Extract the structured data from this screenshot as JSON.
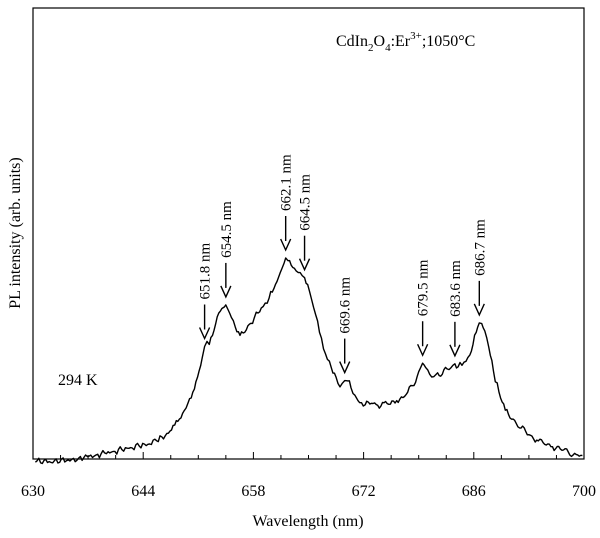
{
  "chart_data": {
    "type": "line",
    "xlabel": "Wavelength (nm)",
    "ylabel": "PL intensity (arb. units)",
    "xlim": [
      630,
      700
    ],
    "ylim": [
      0,
      1
    ],
    "x_ticks": [
      630,
      644,
      658,
      672,
      686,
      700
    ],
    "y_ticks_shown": false,
    "grid": false,
    "annotations": {
      "temperature": "294 K",
      "sample": {
        "base": "CdIn",
        "sub1": "2",
        "mid": "O",
        "sub2": "4",
        "mid2": ":Er",
        "sup": "3+",
        "tail": ";1050°C"
      }
    },
    "peaks": [
      {
        "label": "651.8 nm",
        "x": 651.8,
        "y": 0.393
      },
      {
        "label": "654.5 nm",
        "x": 654.5,
        "y": 0.532
      },
      {
        "label": "662.1 nm",
        "x": 662.1,
        "y": 0.689
      },
      {
        "label": "664.5 nm",
        "x": 664.5,
        "y": 0.623
      },
      {
        "label": "669.6 nm",
        "x": 669.6,
        "y": 0.279
      },
      {
        "label": "679.5 nm",
        "x": 679.5,
        "y": 0.337
      },
      {
        "label": "683.6 nm",
        "x": 683.6,
        "y": 0.335
      },
      {
        "label": "686.7 nm",
        "x": 686.7,
        "y": 0.472
      }
    ],
    "series": [
      {
        "x": [
          630.3,
          631.4,
          632.5,
          633.6,
          634.7,
          635.8,
          636.9,
          638.0,
          639.1,
          640.2,
          641.3,
          642.4,
          643.5,
          644.6,
          645.7,
          646.8,
          647.4,
          648.0,
          648.6,
          649.2,
          649.7,
          650.3,
          650.9,
          651.5,
          651.8,
          652.1,
          652.4,
          652.8,
          653.2,
          653.6,
          654.0,
          654.3,
          654.5,
          654.8,
          655.2,
          655.7,
          656.3,
          656.9,
          657.5,
          658.1,
          658.6,
          659.0,
          659.5,
          660.0,
          660.4,
          660.8,
          661.2,
          661.6,
          661.9,
          662.1,
          662.4,
          662.8,
          663.2,
          663.7,
          664.2,
          664.5,
          664.9,
          665.4,
          665.9,
          666.4,
          666.9,
          667.4,
          667.9,
          668.5,
          669.0,
          669.3,
          669.6,
          670.0,
          670.4,
          670.9,
          671.5,
          672.2,
          673.0,
          673.8,
          674.6,
          675.4,
          676.2,
          677.0,
          677.6,
          678.2,
          678.8,
          679.2,
          679.5,
          679.9,
          680.4,
          680.9,
          681.4,
          682.0,
          682.6,
          683.1,
          683.6,
          684.0,
          684.5,
          685.0,
          685.5,
          685.9,
          686.3,
          686.7,
          687.0,
          687.4,
          687.9,
          688.5,
          689.2,
          690.0,
          691.0,
          692.0,
          693.0,
          694.0,
          695.0,
          696.0,
          697.0,
          698.0,
          699.0,
          699.8
        ],
        "y": [
          0.006,
          0.012,
          0.004,
          0.016,
          0.01,
          0.02,
          0.025,
          0.03,
          0.037,
          0.042,
          0.048,
          0.055,
          0.06,
          0.066,
          0.078,
          0.094,
          0.11,
          0.13,
          0.15,
          0.178,
          0.205,
          0.24,
          0.29,
          0.355,
          0.393,
          0.41,
          0.4,
          0.43,
          0.468,
          0.505,
          0.52,
          0.525,
          0.532,
          0.515,
          0.49,
          0.458,
          0.43,
          0.44,
          0.468,
          0.488,
          0.505,
          0.522,
          0.538,
          0.555,
          0.575,
          0.6,
          0.625,
          0.652,
          0.672,
          0.689,
          0.68,
          0.665,
          0.655,
          0.64,
          0.63,
          0.623,
          0.6,
          0.55,
          0.5,
          0.44,
          0.385,
          0.35,
          0.322,
          0.29,
          0.258,
          0.27,
          0.279,
          0.278,
          0.255,
          0.23,
          0.205,
          0.198,
          0.203,
          0.196,
          0.205,
          0.2,
          0.212,
          0.222,
          0.24,
          0.262,
          0.292,
          0.32,
          0.337,
          0.322,
          0.3,
          0.292,
          0.305,
          0.3,
          0.318,
          0.322,
          0.335,
          0.325,
          0.33,
          0.343,
          0.365,
          0.4,
          0.44,
          0.472,
          0.47,
          0.445,
          0.39,
          0.31,
          0.24,
          0.18,
          0.15,
          0.12,
          0.098,
          0.08,
          0.066,
          0.058,
          0.05,
          0.04,
          0.032,
          0.028
        ]
      }
    ]
  }
}
